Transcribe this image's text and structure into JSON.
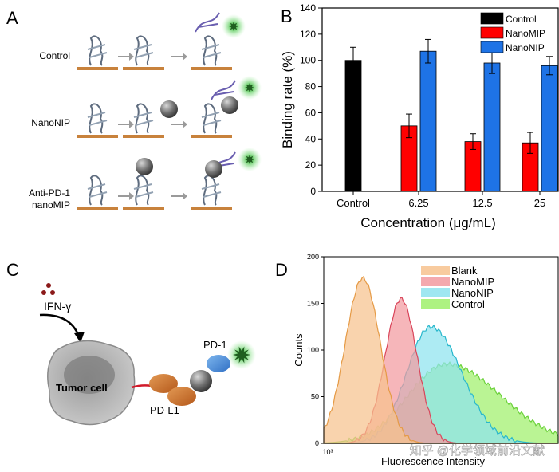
{
  "panels": {
    "a_letter": "A",
    "b_letter": "B",
    "c_letter": "C",
    "d_letter": "D"
  },
  "panel_a": {
    "rows": [
      "Control",
      "NanoNIP",
      "Anti-PD-1",
      "nanoMIP"
    ]
  },
  "panel_c": {
    "ifn_label": "IFN-γ",
    "tumor_label": "Tumor cell",
    "pd1_label": "PD-1",
    "pdl1_label": "PD-L1"
  },
  "colors": {
    "control": "#000000",
    "nanomip": "#ff0000",
    "nanonip": "#1e73e6",
    "blank_fill": "#f7c28e",
    "nanomip_fill": "#f29aa0",
    "nanonip_fill": "#8ee3ef",
    "control_fill": "#9ff06b"
  },
  "watermark": "知乎 @化学领域前沿文献",
  "chart_data": [
    {
      "type": "bar",
      "panel": "B",
      "title": "",
      "xlabel": "Concentration (μg/mL)",
      "ylabel": "Binding rate (%)",
      "ylim": [
        0,
        140
      ],
      "yticks": [
        "0",
        "20",
        "40",
        "60",
        "80",
        "100",
        "120",
        "140"
      ],
      "categories": [
        "Control",
        "6.25",
        "12.5",
        "25"
      ],
      "legend": [
        "Control",
        "NanoMIP",
        "NanoNIP"
      ],
      "series": [
        {
          "name": "Control",
          "values": [
            100,
            null,
            null,
            null
          ],
          "errors": [
            10,
            null,
            null,
            null
          ]
        },
        {
          "name": "NanoMIP",
          "values": [
            null,
            50,
            38,
            37
          ],
          "errors": [
            null,
            9,
            6,
            8
          ]
        },
        {
          "name": "NanoNIP",
          "values": [
            null,
            107,
            98,
            96
          ],
          "errors": [
            null,
            9,
            8,
            7
          ]
        }
      ]
    },
    {
      "type": "area",
      "panel": "D",
      "xlabel": "Fluorescence Intensity",
      "ylabel": "Counts",
      "ylim": [
        0,
        200
      ],
      "yticks": [
        "0",
        "50",
        "100",
        "150",
        "200"
      ],
      "xtick": "10³",
      "legend": [
        "Blank",
        "NanoMIP",
        "NanoNIP",
        "Control"
      ],
      "series": [
        {
          "name": "Blank",
          "peak": 177
        },
        {
          "name": "NanoMIP",
          "peak": 155
        },
        {
          "name": "NanoNIP",
          "peak": 125
        },
        {
          "name": "Control",
          "peak": 85
        }
      ]
    }
  ]
}
